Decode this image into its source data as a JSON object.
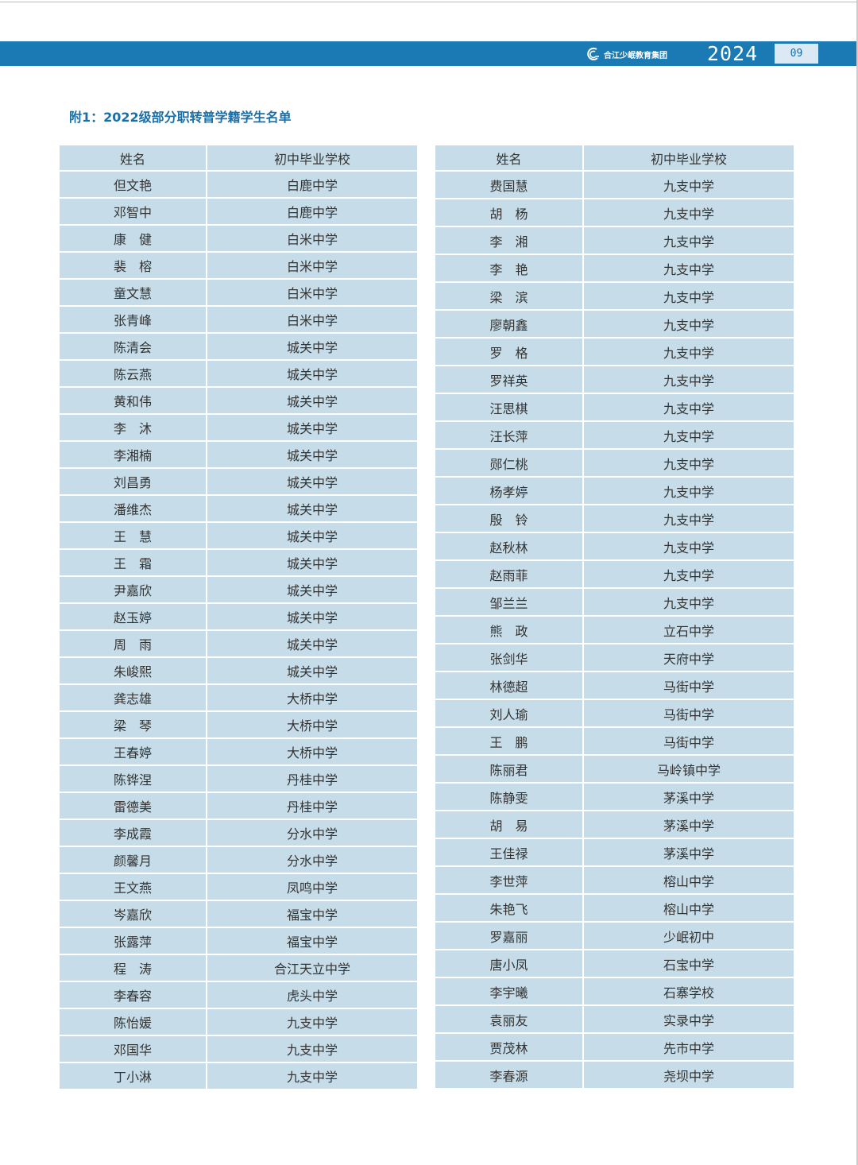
{
  "header": {
    "org_name": "合江少岷教育集团",
    "year": "2024",
    "page_number": "09",
    "brand_color": "#1b7ab4"
  },
  "title": "附1：2022级部分职转普学籍学生名单",
  "columns": [
    "姓名",
    "初中毕业学校"
  ],
  "left_table": [
    [
      "但文艳",
      "白鹿中学"
    ],
    [
      "邓智中",
      "白鹿中学"
    ],
    [
      "康　健",
      "白米中学"
    ],
    [
      "裴　榕",
      "白米中学"
    ],
    [
      "童文慧",
      "白米中学"
    ],
    [
      "张青峰",
      "白米中学"
    ],
    [
      "陈清会",
      "城关中学"
    ],
    [
      "陈云燕",
      "城关中学"
    ],
    [
      "黄和伟",
      "城关中学"
    ],
    [
      "李　沐",
      "城关中学"
    ],
    [
      "李湘楠",
      "城关中学"
    ],
    [
      "刘昌勇",
      "城关中学"
    ],
    [
      "潘维杰",
      "城关中学"
    ],
    [
      "王　慧",
      "城关中学"
    ],
    [
      "王　霜",
      "城关中学"
    ],
    [
      "尹嘉欣",
      "城关中学"
    ],
    [
      "赵玉婷",
      "城关中学"
    ],
    [
      "周　雨",
      "城关中学"
    ],
    [
      "朱峻熙",
      "城关中学"
    ],
    [
      "龚志雄",
      "大桥中学"
    ],
    [
      "梁　琴",
      "大桥中学"
    ],
    [
      "王春婷",
      "大桥中学"
    ],
    [
      "陈铧涅",
      "丹桂中学"
    ],
    [
      "雷德美",
      "丹桂中学"
    ],
    [
      "李成霞",
      "分水中学"
    ],
    [
      "颜馨月",
      "分水中学"
    ],
    [
      "王文燕",
      "凤鸣中学"
    ],
    [
      "岑嘉欣",
      "福宝中学"
    ],
    [
      "张露萍",
      "福宝中学"
    ],
    [
      "程　涛",
      "合江天立中学"
    ],
    [
      "李春容",
      "虎头中学"
    ],
    [
      "陈怡媛",
      "九支中学"
    ],
    [
      "邓国华",
      "九支中学"
    ],
    [
      "丁小淋",
      "九支中学"
    ]
  ],
  "right_table": [
    [
      "费国慧",
      "九支中学"
    ],
    [
      "胡　杨",
      "九支中学"
    ],
    [
      "李　湘",
      "九支中学"
    ],
    [
      "李　艳",
      "九支中学"
    ],
    [
      "梁　滨",
      "九支中学"
    ],
    [
      "廖朝鑫",
      "九支中学"
    ],
    [
      "罗　格",
      "九支中学"
    ],
    [
      "罗祥英",
      "九支中学"
    ],
    [
      "汪思棋",
      "九支中学"
    ],
    [
      "汪长萍",
      "九支中学"
    ],
    [
      "郧仁桃",
      "九支中学"
    ],
    [
      "杨孝婷",
      "九支中学"
    ],
    [
      "殷　铃",
      "九支中学"
    ],
    [
      "赵秋林",
      "九支中学"
    ],
    [
      "赵雨菲",
      "九支中学"
    ],
    [
      "邹兰兰",
      "九支中学"
    ],
    [
      "熊　政",
      "立石中学"
    ],
    [
      "张剑华",
      "天府中学"
    ],
    [
      "林德超",
      "马街中学"
    ],
    [
      "刘人瑜",
      "马街中学"
    ],
    [
      "王　鹏",
      "马街中学"
    ],
    [
      "陈丽君",
      "马岭镇中学"
    ],
    [
      "陈静雯",
      "茅溪中学"
    ],
    [
      "胡　易",
      "茅溪中学"
    ],
    [
      "王佳禄",
      "茅溪中学"
    ],
    [
      "李世萍",
      "榕山中学"
    ],
    [
      "朱艳飞",
      "榕山中学"
    ],
    [
      "罗嘉丽",
      "少岷初中"
    ],
    [
      "唐小凤",
      "石宝中学"
    ],
    [
      "李宇曦",
      "石寨学校"
    ],
    [
      "袁丽友",
      "实录中学"
    ],
    [
      "贾茂林",
      "先市中学"
    ],
    [
      "李春源",
      "尧坝中学"
    ]
  ]
}
